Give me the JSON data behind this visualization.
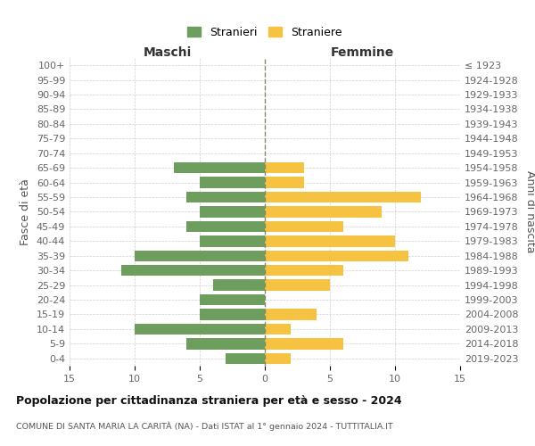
{
  "age_groups": [
    "100+",
    "95-99",
    "90-94",
    "85-89",
    "80-84",
    "75-79",
    "70-74",
    "65-69",
    "60-64",
    "55-59",
    "50-54",
    "45-49",
    "40-44",
    "35-39",
    "30-34",
    "25-29",
    "20-24",
    "15-19",
    "10-14",
    "5-9",
    "0-4"
  ],
  "birth_years": [
    "≤ 1923",
    "1924-1928",
    "1929-1933",
    "1934-1938",
    "1939-1943",
    "1944-1948",
    "1949-1953",
    "1954-1958",
    "1959-1963",
    "1964-1968",
    "1969-1973",
    "1974-1978",
    "1979-1983",
    "1984-1988",
    "1989-1993",
    "1994-1998",
    "1999-2003",
    "2004-2008",
    "2009-2013",
    "2014-2018",
    "2019-2023"
  ],
  "stranieri": [
    0,
    0,
    0,
    0,
    0,
    0,
    0,
    7,
    5,
    6,
    5,
    6,
    5,
    10,
    11,
    4,
    5,
    5,
    10,
    6,
    3
  ],
  "straniere": [
    0,
    0,
    0,
    0,
    0,
    0,
    0,
    3,
    3,
    12,
    9,
    6,
    10,
    11,
    6,
    5,
    0,
    4,
    2,
    6,
    2
  ],
  "male_color": "#6d9e5e",
  "female_color": "#f5c242",
  "title": "Popolazione per cittadinanza straniera per età e sesso - 2024",
  "subtitle": "COMUNE DI SANTA MARIA LA CARITÀ (NA) - Dati ISTAT al 1° gennaio 2024 - TUTTITALIA.IT",
  "left_label": "Maschi",
  "right_label": "Femmine",
  "ylabel_left": "Fasce di età",
  "ylabel_right": "Anni di nascita",
  "legend_male": "Stranieri",
  "legend_female": "Straniere",
  "xlim": 15,
  "background_color": "#ffffff",
  "grid_color": "#d0d0d0"
}
